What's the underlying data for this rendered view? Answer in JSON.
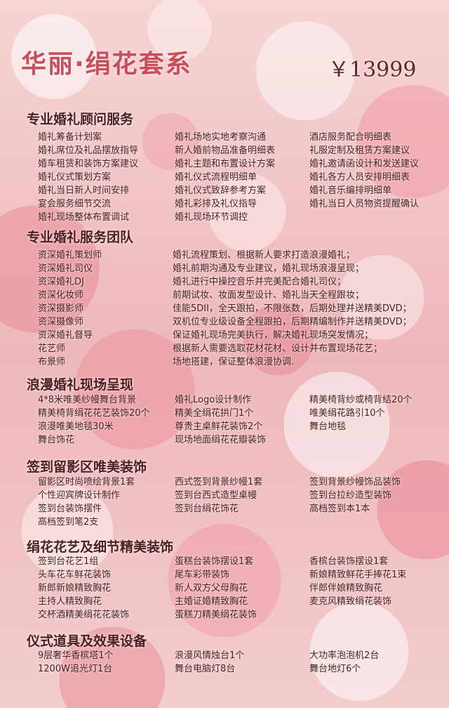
{
  "header": {
    "title": "华丽·绢花套系",
    "price": "￥13999"
  },
  "sections": [
    {
      "title": "专业婚礼顾问服务",
      "rows": [
        [
          "婚礼筹备计划案",
          "婚礼场地实地考察沟通",
          "酒店服务配合明细表"
        ],
        [
          "婚礼席位及礼品摆放指导",
          "新人婚前物品准备明细表",
          "礼服定制及租赁方案建议"
        ],
        [
          "婚车租赁和装饰方案建议",
          "婚礼主题和布置设计方案",
          "婚礼邀请函设计和发送建议"
        ],
        [
          "婚礼仪式策划方案",
          "婚礼仪式流程明细单",
          "婚礼各方人员安排明细表"
        ],
        [
          "婚礼当日新人时间安排",
          "婚礼仪式致辞参考方案",
          "婚礼音乐编排明细单"
        ],
        [
          "宴会服务细节交流",
          "婚礼彩排及礼仪指导",
          "婚礼当日人员物资提醒确认"
        ],
        [
          "婚礼现场整体布置调试",
          "婚礼现场环节调控",
          ""
        ]
      ]
    },
    {
      "title": "专业婚礼服务团队",
      "rows": [
        [
          "资深婚礼策划师",
          "婚礼流程策划、根据新人要求打造浪漫婚礼；"
        ],
        [
          "资深婚礼司仪",
          "婚礼前期沟通及专业建议，婚礼现场浪漫呈现；"
        ],
        [
          "资深婚礼DJ",
          "婚礼进行中操控音乐并完美配合婚礼司仪；"
        ],
        [
          "资深化妆师",
          "前期试妆、妆面发型设计、婚礼当天全程跟妆；"
        ],
        [
          "资深摄影师",
          "佳能5DII，全天跟拍，不限张数，后期处理并送精美DVD；"
        ],
        [
          "资深摄像师",
          "双机位专业级设备全程跟拍，后期精编制作并送精美DVD；"
        ],
        [
          "资深婚礼督导",
          "保证婚礼现场完美执行，解决婚礼现场突发情况；"
        ],
        [
          "花艺师",
          "根据新人需要选取花材花材、设计并布置现场花艺；"
        ],
        [
          "布景师",
          "场地搭建，保证整体浪漫协调."
        ]
      ]
    },
    {
      "title": "浪漫婚礼现场呈现",
      "rows": [
        [
          "4*8米唯美纱幔舞台背景",
          "婚礼Logo设计制作",
          "精美椅背纱或椅背结20个"
        ],
        [
          "精美椅背绢花花艺装饰20个",
          "精美全绢花拱门1个",
          "唯美绢花路引10个"
        ],
        [
          "浪漫唯美地毯30米",
          "尊贵主桌鲜花装饰2个",
          "舞台地毯"
        ],
        [
          "舞台饰花",
          "现场地面绢花花瓣装饰",
          ""
        ]
      ]
    },
    {
      "title": "签到留影区唯美装饰",
      "rows": [
        [
          "留影区时尚喷绘背景1套",
          "西式签到背景纱幔1套",
          "签到背景纱幔饰品装饰"
        ],
        [
          "个性迎宾牌设计制作",
          "签到台西式造型桌幔",
          "签到台拉纱造型装饰"
        ],
        [
          "签到台装饰摆件",
          "签到台绢花饰花",
          "高档签到本1本"
        ],
        [
          "高档签到笔2支",
          "",
          ""
        ]
      ]
    },
    {
      "title": "绢花花艺及细节精美装饰",
      "rows": [
        [
          "签到台花艺1组",
          "蛋糕台装饰摆设1套",
          "香槟台装饰摆设1套"
        ],
        [
          "头车花车鲜花装饰",
          "尾车彩带装饰",
          "新娘精致鲜花手捧花1束"
        ],
        [
          "新郎新娘精致胸花",
          "新人双方父母胸花",
          "伴郎伴娘精致胸花"
        ],
        [
          "主持人精致胸花",
          "主婚证婚精致胸花",
          "麦克风精致绢花装饰"
        ],
        [
          "交杯酒精美绢花花装饰",
          "蛋糕刀精美绢花装饰",
          ""
        ]
      ]
    },
    {
      "title": "仪式道具及效果设备",
      "rows": [
        [
          "9层奢华香槟塔1个",
          "浪漫风情烛台1个",
          "大功率泡泡机2台"
        ],
        [
          "1200W追光灯1台",
          "舞台电脑灯8台",
          "舞台地灯6个"
        ]
      ]
    }
  ]
}
